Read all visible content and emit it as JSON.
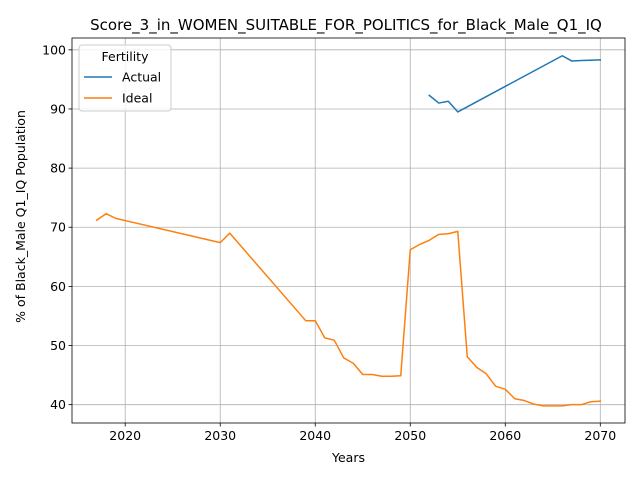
{
  "chart_data": {
    "type": "line",
    "title": "Score_3_in_WOMEN_SUITABLE_FOR_POLITICS_for_Black_Male_Q1_IQ",
    "xlabel": "Years",
    "ylabel": "% of Black_Male Q1_IQ Population",
    "xlim": [
      2014.4,
      2072.6
    ],
    "ylim": [
      36.9,
      102.0
    ],
    "xticks": [
      2020,
      2030,
      2040,
      2050,
      2060,
      2070
    ],
    "yticks": [
      40,
      50,
      60,
      70,
      80,
      90,
      100
    ],
    "grid": true,
    "legend": {
      "title": "Fertility",
      "placement": "top-left"
    },
    "series": [
      {
        "name": "Actual",
        "color": "#1f77b4",
        "points": [
          [
            2052,
            92.3
          ],
          [
            2053,
            91.0
          ],
          [
            2054,
            91.3
          ],
          [
            2055,
            89.5
          ],
          [
            2066,
            99.0
          ],
          [
            2067,
            98.1
          ],
          [
            2068,
            98.2
          ],
          [
            2070,
            98.3
          ]
        ]
      },
      {
        "name": "Ideal",
        "color": "#ff7f0e",
        "points": [
          [
            2017,
            71.2
          ],
          [
            2018,
            72.3
          ],
          [
            2019,
            71.5
          ],
          [
            2030,
            67.4
          ],
          [
            2031,
            69.0
          ],
          [
            2039,
            54.2
          ],
          [
            2040,
            54.2
          ],
          [
            2041,
            51.3
          ],
          [
            2042,
            50.9
          ],
          [
            2043,
            47.9
          ],
          [
            2044,
            47.0
          ],
          [
            2045,
            45.1
          ],
          [
            2046,
            45.1
          ],
          [
            2047,
            44.8
          ],
          [
            2048,
            44.8
          ],
          [
            2049,
            44.9
          ],
          [
            2050,
            66.2
          ],
          [
            2051,
            67.1
          ],
          [
            2052,
            67.8
          ],
          [
            2053,
            68.8
          ],
          [
            2054,
            68.9
          ],
          [
            2055,
            69.3
          ],
          [
            2056,
            48.1
          ],
          [
            2057,
            46.3
          ],
          [
            2058,
            45.2
          ],
          [
            2059,
            43.1
          ],
          [
            2060,
            42.6
          ],
          [
            2061,
            41.0
          ],
          [
            2062,
            40.7
          ],
          [
            2063,
            40.1
          ],
          [
            2064,
            39.8
          ],
          [
            2065,
            39.8
          ],
          [
            2066,
            39.8
          ],
          [
            2067,
            40.0
          ],
          [
            2068,
            40.0
          ],
          [
            2069,
            40.5
          ],
          [
            2070,
            40.6
          ]
        ]
      }
    ]
  }
}
